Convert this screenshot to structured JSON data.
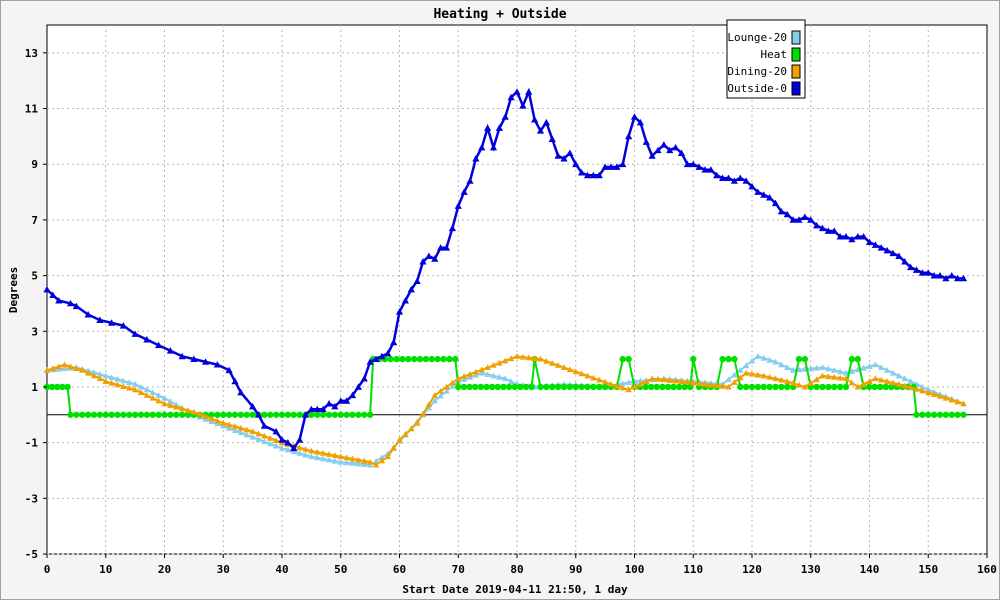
{
  "chart_data": {
    "type": "line",
    "title": "Heating + Outside",
    "xlabel": "Start Date 2019-04-11 21:50, 1 day",
    "ylabel": "Degrees",
    "xlim": [
      0,
      160
    ],
    "ylim": [
      -5,
      14
    ],
    "xticks": [
      0,
      10,
      20,
      30,
      40,
      50,
      60,
      70,
      80,
      90,
      100,
      110,
      120,
      130,
      140,
      150,
      160
    ],
    "yticks": [
      -5,
      -3,
      -1,
      1,
      3,
      5,
      7,
      9,
      11,
      13
    ],
    "grid": true,
    "legend_position": "top-right",
    "series": [
      {
        "name": "Lounge-20",
        "color": "#87ceeb",
        "marker": "triangle",
        "points": [
          [
            0,
            1.6
          ],
          [
            5,
            1.7
          ],
          [
            10,
            1.4
          ],
          [
            15,
            1.1
          ],
          [
            20,
            0.6
          ],
          [
            25,
            0.0
          ],
          [
            30,
            -0.4
          ],
          [
            35,
            -0.8
          ],
          [
            40,
            -1.2
          ],
          [
            45,
            -1.5
          ],
          [
            50,
            -1.7
          ],
          [
            55,
            -1.8
          ],
          [
            58,
            -1.4
          ],
          [
            62,
            -0.5
          ],
          [
            66,
            0.5
          ],
          [
            70,
            1.2
          ],
          [
            74,
            1.5
          ],
          [
            78,
            1.3
          ],
          [
            80,
            1.1
          ],
          [
            83,
            1.0
          ],
          [
            88,
            1.1
          ],
          [
            95,
            1.0
          ],
          [
            100,
            1.2
          ],
          [
            105,
            1.3
          ],
          [
            110,
            1.2
          ],
          [
            115,
            1.1
          ],
          [
            118,
            1.6
          ],
          [
            121,
            2.1
          ],
          [
            124,
            1.9
          ],
          [
            127,
            1.6
          ],
          [
            132,
            1.7
          ],
          [
            136,
            1.5
          ],
          [
            141,
            1.8
          ],
          [
            145,
            1.4
          ],
          [
            150,
            0.9
          ],
          [
            156,
            0.4
          ]
        ]
      },
      {
        "name": "Heat",
        "color": "#00e000",
        "marker": "circle",
        "points": [
          [
            0,
            1
          ],
          [
            3.5,
            1
          ],
          [
            4,
            0
          ],
          [
            55,
            0
          ],
          [
            55.5,
            2
          ],
          [
            69.5,
            2
          ],
          [
            70,
            1
          ],
          [
            82.5,
            1
          ],
          [
            83,
            2
          ],
          [
            84,
            1
          ],
          [
            97,
            1
          ],
          [
            98,
            2
          ],
          [
            99,
            2
          ],
          [
            100,
            1
          ],
          [
            109.5,
            1
          ],
          [
            110,
            2
          ],
          [
            111,
            1
          ],
          [
            114,
            1
          ],
          [
            115,
            2
          ],
          [
            117,
            2
          ],
          [
            118,
            1
          ],
          [
            127,
            1
          ],
          [
            128,
            2
          ],
          [
            129,
            2
          ],
          [
            130,
            1
          ],
          [
            136,
            1
          ],
          [
            137,
            2
          ],
          [
            138,
            2
          ],
          [
            139,
            1
          ],
          [
            147.5,
            1
          ],
          [
            148,
            0
          ],
          [
            156,
            0
          ]
        ]
      },
      {
        "name": "Dining-20",
        "color": "#f0a000",
        "marker": "triangle",
        "points": [
          [
            0,
            1.6
          ],
          [
            3,
            1.8
          ],
          [
            6,
            1.6
          ],
          [
            10,
            1.2
          ],
          [
            15,
            0.9
          ],
          [
            20,
            0.4
          ],
          [
            25,
            0.1
          ],
          [
            30,
            -0.3
          ],
          [
            35,
            -0.6
          ],
          [
            40,
            -1.0
          ],
          [
            45,
            -1.3
          ],
          [
            50,
            -1.5
          ],
          [
            55,
            -1.7
          ],
          [
            56,
            -1.8
          ],
          [
            58,
            -1.5
          ],
          [
            60,
            -0.9
          ],
          [
            63,
            -0.3
          ],
          [
            66,
            0.7
          ],
          [
            70,
            1.3
          ],
          [
            75,
            1.7
          ],
          [
            80,
            2.1
          ],
          [
            84,
            2.0
          ],
          [
            88,
            1.7
          ],
          [
            92,
            1.4
          ],
          [
            96,
            1.1
          ],
          [
            99,
            0.9
          ],
          [
            103,
            1.3
          ],
          [
            108,
            1.2
          ],
          [
            112,
            1.1
          ],
          [
            116,
            1.0
          ],
          [
            119,
            1.5
          ],
          [
            122,
            1.4
          ],
          [
            126,
            1.2
          ],
          [
            129,
            1.0
          ],
          [
            132,
            1.4
          ],
          [
            136,
            1.3
          ],
          [
            138,
            1.0
          ],
          [
            141,
            1.3
          ],
          [
            145,
            1.1
          ],
          [
            150,
            0.8
          ],
          [
            156,
            0.4
          ]
        ]
      },
      {
        "name": "Outside-0",
        "color": "#0000dd",
        "marker": "triangle",
        "points": [
          [
            0,
            4.5
          ],
          [
            1,
            4.3
          ],
          [
            2,
            4.1
          ],
          [
            4,
            4.0
          ],
          [
            5,
            3.9
          ],
          [
            7,
            3.6
          ],
          [
            9,
            3.4
          ],
          [
            11,
            3.3
          ],
          [
            13,
            3.2
          ],
          [
            15,
            2.9
          ],
          [
            17,
            2.7
          ],
          [
            19,
            2.5
          ],
          [
            21,
            2.3
          ],
          [
            23,
            2.1
          ],
          [
            25,
            2.0
          ],
          [
            27,
            1.9
          ],
          [
            29,
            1.8
          ],
          [
            31,
            1.6
          ],
          [
            32,
            1.2
          ],
          [
            33,
            0.8
          ],
          [
            35,
            0.3
          ],
          [
            36,
            0.0
          ],
          [
            37,
            -0.4
          ],
          [
            39,
            -0.6
          ],
          [
            40,
            -0.9
          ],
          [
            41,
            -1.0
          ],
          [
            42,
            -1.2
          ],
          [
            43,
            -0.9
          ],
          [
            44,
            0.0
          ],
          [
            45,
            0.2
          ],
          [
            46,
            0.2
          ],
          [
            47,
            0.2
          ],
          [
            48,
            0.4
          ],
          [
            49,
            0.3
          ],
          [
            50,
            0.5
          ],
          [
            51,
            0.5
          ],
          [
            52,
            0.7
          ],
          [
            53,
            1.0
          ],
          [
            54,
            1.3
          ],
          [
            55,
            1.9
          ],
          [
            56,
            2.0
          ],
          [
            57,
            2.1
          ],
          [
            58,
            2.2
          ],
          [
            59,
            2.6
          ],
          [
            60,
            3.7
          ],
          [
            61,
            4.1
          ],
          [
            62,
            4.5
          ],
          [
            63,
            4.8
          ],
          [
            64,
            5.5
          ],
          [
            65,
            5.7
          ],
          [
            66,
            5.6
          ],
          [
            67,
            6.0
          ],
          [
            68,
            6.0
          ],
          [
            69,
            6.7
          ],
          [
            70,
            7.5
          ],
          [
            71,
            8.0
          ],
          [
            72,
            8.4
          ],
          [
            73,
            9.2
          ],
          [
            74,
            9.6
          ],
          [
            75,
            10.3
          ],
          [
            76,
            9.6
          ],
          [
            77,
            10.3
          ],
          [
            78,
            10.7
          ],
          [
            79,
            11.4
          ],
          [
            80,
            11.6
          ],
          [
            81,
            11.1
          ],
          [
            82,
            11.6
          ],
          [
            83,
            10.6
          ],
          [
            84,
            10.2
          ],
          [
            85,
            10.5
          ],
          [
            86,
            9.9
          ],
          [
            87,
            9.3
          ],
          [
            88,
            9.2
          ],
          [
            89,
            9.4
          ],
          [
            90,
            9.0
          ],
          [
            91,
            8.7
          ],
          [
            92,
            8.6
          ],
          [
            93,
            8.6
          ],
          [
            94,
            8.6
          ],
          [
            95,
            8.9
          ],
          [
            96,
            8.9
          ],
          [
            97,
            8.9
          ],
          [
            98,
            9.0
          ],
          [
            99,
            10.0
          ],
          [
            100,
            10.7
          ],
          [
            101,
            10.5
          ],
          [
            102,
            9.8
          ],
          [
            103,
            9.3
          ],
          [
            104,
            9.5
          ],
          [
            105,
            9.7
          ],
          [
            106,
            9.5
          ],
          [
            107,
            9.6
          ],
          [
            108,
            9.4
          ],
          [
            109,
            9.0
          ],
          [
            110,
            9.0
          ],
          [
            111,
            8.9
          ],
          [
            112,
            8.8
          ],
          [
            113,
            8.8
          ],
          [
            114,
            8.6
          ],
          [
            115,
            8.5
          ],
          [
            116,
            8.5
          ],
          [
            117,
            8.4
          ],
          [
            118,
            8.5
          ],
          [
            119,
            8.4
          ],
          [
            120,
            8.2
          ],
          [
            121,
            8.0
          ],
          [
            122,
            7.9
          ],
          [
            123,
            7.8
          ],
          [
            124,
            7.6
          ],
          [
            125,
            7.3
          ],
          [
            126,
            7.2
          ],
          [
            127,
            7.0
          ],
          [
            128,
            7.0
          ],
          [
            129,
            7.1
          ],
          [
            130,
            7.0
          ],
          [
            131,
            6.8
          ],
          [
            132,
            6.7
          ],
          [
            133,
            6.6
          ],
          [
            134,
            6.6
          ],
          [
            135,
            6.4
          ],
          [
            136,
            6.4
          ],
          [
            137,
            6.3
          ],
          [
            138,
            6.4
          ],
          [
            139,
            6.4
          ],
          [
            140,
            6.2
          ],
          [
            141,
            6.1
          ],
          [
            142,
            6.0
          ],
          [
            143,
            5.9
          ],
          [
            144,
            5.8
          ],
          [
            145,
            5.7
          ],
          [
            146,
            5.5
          ],
          [
            147,
            5.3
          ],
          [
            148,
            5.2
          ],
          [
            149,
            5.1
          ],
          [
            150,
            5.1
          ],
          [
            151,
            5.0
          ],
          [
            152,
            5.0
          ],
          [
            153,
            4.9
          ],
          [
            154,
            5.0
          ],
          [
            155,
            4.9
          ],
          [
            156,
            4.9
          ]
        ]
      }
    ]
  }
}
